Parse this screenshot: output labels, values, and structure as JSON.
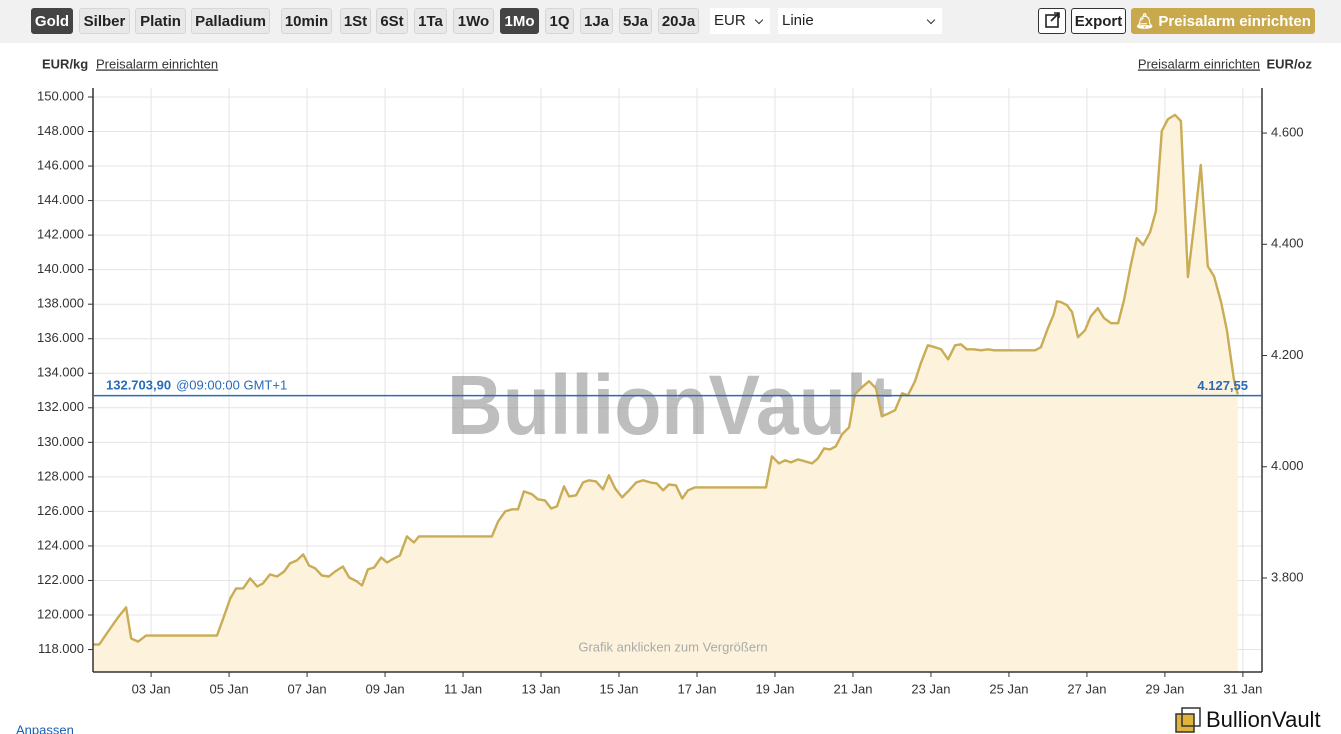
{
  "toolbar": {
    "metals": [
      "Gold",
      "Silber",
      "Platin",
      "Palladium"
    ],
    "active_metal": 0,
    "ranges": [
      "10min",
      "1St",
      "6St",
      "1Ta",
      "1Wo",
      "1Mo",
      "1Q",
      "1Ja",
      "5Ja",
      "20Ja"
    ],
    "active_range": 5,
    "currency": "EUR",
    "chart_style": "Linie",
    "export": "Export",
    "alarm_button": "Preisalarm einrichten"
  },
  "chart_data": {
    "type": "area",
    "y_label": "EUR/kg",
    "y2_label": "EUR/oz",
    "alarm_link": "Preisalarm einrichten",
    "watermark": "BullionVault",
    "hint": "Grafik anklicken zum Vergrößern",
    "color": "#c9ac55",
    "fill": "#fdf3dd",
    "grid": true,
    "xlim": [
      1.51,
      31.49
    ],
    "xticks": [
      {
        "value": 3,
        "label": "03 Jan"
      },
      {
        "value": 5,
        "label": "05 Jan"
      },
      {
        "value": 7,
        "label": "07 Jan"
      },
      {
        "value": 9,
        "label": "09 Jan"
      },
      {
        "value": 11,
        "label": "11 Jan"
      },
      {
        "value": 13,
        "label": "13 Jan"
      },
      {
        "value": 15,
        "label": "15 Jan"
      },
      {
        "value": 17,
        "label": "17 Jan"
      },
      {
        "value": 19,
        "label": "19 Jan"
      },
      {
        "value": 21,
        "label": "21 Jan"
      },
      {
        "value": 23,
        "label": "23 Jan"
      },
      {
        "value": 25,
        "label": "25 Jan"
      },
      {
        "value": 27,
        "label": "27 Jan"
      },
      {
        "value": 29,
        "label": "29 Jan"
      },
      {
        "value": 31,
        "label": "31 Jan"
      }
    ],
    "ylim": [
      116700,
      150520
    ],
    "yticks": [
      {
        "value": 118000,
        "label": "118.000"
      },
      {
        "value": 120000,
        "label": "120.000"
      },
      {
        "value": 122000,
        "label": "122.000"
      },
      {
        "value": 124000,
        "label": "124.000"
      },
      {
        "value": 126000,
        "label": "126.000"
      },
      {
        "value": 128000,
        "label": "128.000"
      },
      {
        "value": 130000,
        "label": "130.000"
      },
      {
        "value": 132000,
        "label": "132.000"
      },
      {
        "value": 134000,
        "label": "134.000"
      },
      {
        "value": 136000,
        "label": "136.000"
      },
      {
        "value": 138000,
        "label": "138.000"
      },
      {
        "value": 140000,
        "label": "140.000"
      },
      {
        "value": 142000,
        "label": "142.000"
      },
      {
        "value": 144000,
        "label": "144.000"
      },
      {
        "value": 146000,
        "label": "146.000"
      },
      {
        "value": 148000,
        "label": "148.000"
      },
      {
        "value": 150000,
        "label": "150.000"
      }
    ],
    "y2lim": [
      3631,
      4681
    ],
    "y2ticks": [
      {
        "value": 3800,
        "label": "3.800"
      },
      {
        "value": 4000,
        "label": "4.000"
      },
      {
        "value": 4200,
        "label": "4.200"
      },
      {
        "value": 4400,
        "label": "4.400"
      },
      {
        "value": 4600,
        "label": "4.600"
      }
    ],
    "reference": {
      "value": 132703.9,
      "label": "132.703,90",
      "time": "@09:00:00 GMT+1",
      "value2": 4127.55,
      "label2": "4.127,55",
      "color": "#2a6bb8"
    },
    "x": [
      1.51,
      1.67,
      1.95,
      2.15,
      2.36,
      2.49,
      2.67,
      2.87,
      4.69,
      4.85,
      5.03,
      5.18,
      5.36,
      5.54,
      5.72,
      5.87,
      6.05,
      6.23,
      6.41,
      6.56,
      6.74,
      6.9,
      7.05,
      7.21,
      7.38,
      7.56,
      7.72,
      7.92,
      8.08,
      8.28,
      8.41,
      8.56,
      8.72,
      8.9,
      9.05,
      9.23,
      9.38,
      9.56,
      9.74,
      9.87,
      11.74,
      11.9,
      12.08,
      12.26,
      12.41,
      12.56,
      12.77,
      12.92,
      13.1,
      13.26,
      13.41,
      13.59,
      13.72,
      13.9,
      14.08,
      14.23,
      14.41,
      14.59,
      14.74,
      14.9,
      15.08,
      15.26,
      15.44,
      15.62,
      15.8,
      15.97,
      16.13,
      16.28,
      16.46,
      16.62,
      16.77,
      16.95,
      18.77,
      18.92,
      19.1,
      19.26,
      19.41,
      19.59,
      19.77,
      19.95,
      20.1,
      20.26,
      20.41,
      20.56,
      20.72,
      20.9,
      21.05,
      21.23,
      21.41,
      21.59,
      21.74,
      21.92,
      22.08,
      22.26,
      22.41,
      22.59,
      22.74,
      22.92,
      23.1,
      23.26,
      23.44,
      23.62,
      23.77,
      23.92,
      24.1,
      24.28,
      24.46,
      24.62,
      24.8,
      25.67,
      25.82,
      26.0,
      26.15,
      26.23,
      26.33,
      26.49,
      26.62,
      26.77,
      26.95,
      27.1,
      27.28,
      27.44,
      27.62,
      27.8,
      27.95,
      28.13,
      28.28,
      28.44,
      28.62,
      28.77,
      28.92,
      29.08,
      29.26,
      29.41,
      29.59,
      29.77,
      29.92,
      30.1,
      30.26,
      30.44,
      30.59,
      30.77,
      30.87
    ],
    "values": [
      118290,
      118290,
      119220,
      119860,
      120440,
      118640,
      118460,
      118810,
      118810,
      119800,
      120960,
      121540,
      121540,
      122120,
      121650,
      121830,
      122350,
      122230,
      122520,
      122990,
      123160,
      123510,
      122870,
      122700,
      122290,
      122230,
      122520,
      122810,
      122170,
      121940,
      121710,
      122640,
      122750,
      123330,
      123040,
      123280,
      123450,
      124550,
      124200,
      124550,
      124550,
      125420,
      126000,
      126120,
      126120,
      127160,
      126990,
      126700,
      126640,
      126170,
      126290,
      127450,
      126870,
      126930,
      127680,
      127800,
      127740,
      127280,
      128090,
      127330,
      126810,
      127220,
      127680,
      127800,
      127680,
      127620,
      127220,
      127560,
      127510,
      126750,
      127220,
      127390,
      127390,
      129190,
      128780,
      128960,
      128840,
      129010,
      128900,
      128780,
      129070,
      129650,
      129590,
      129770,
      130460,
      130870,
      132780,
      133190,
      133540,
      133130,
      131510,
      131680,
      131860,
      132840,
      132720,
      133540,
      134580,
      135620,
      135510,
      135390,
      134810,
      135620,
      135680,
      135390,
      135390,
      135330,
      135390,
      135330,
      135330,
      135330,
      135510,
      136610,
      137420,
      138170,
      138120,
      137940,
      137540,
      136090,
      136490,
      137300,
      137770,
      137190,
      136900,
      136900,
      138230,
      140320,
      141830,
      141420,
      142170,
      143390,
      148030,
      148720,
      148960,
      148610,
      139570,
      142990,
      146060,
      140200,
      139620,
      138120,
      136490,
      133650,
      132780
    ]
  },
  "footer": {
    "customize": "Anpassen",
    "logo": "BullionVault"
  }
}
